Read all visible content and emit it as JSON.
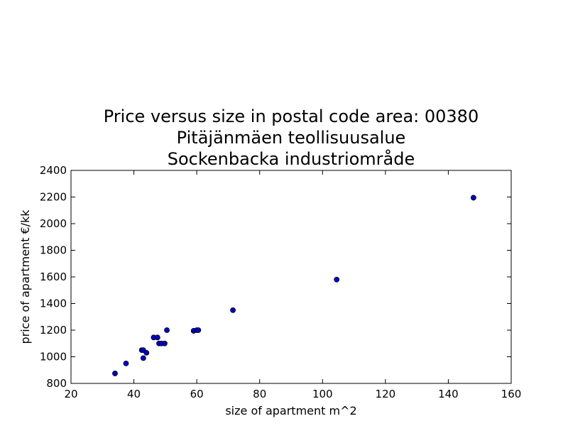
{
  "chart_data": {
    "type": "scatter",
    "title_lines": [
      "Price versus size in postal code area: 00380",
      "Pitäjänmäen teollisuusalue",
      "Sockenbacka industriområde"
    ],
    "xlabel": "size of apartment m^2",
    "ylabel": "price of apartment €/kk",
    "xlim": [
      20,
      160
    ],
    "ylim": [
      800,
      2400
    ],
    "xticks": [
      20,
      40,
      60,
      80,
      100,
      120,
      140,
      160
    ],
    "yticks": [
      800,
      1000,
      1200,
      1400,
      1600,
      1800,
      2000,
      2200,
      2400
    ],
    "grid": false,
    "series": [
      {
        "color": "#0000cc",
        "points": [
          {
            "x": 34,
            "y": 875
          },
          {
            "x": 37.5,
            "y": 950
          },
          {
            "x": 42.5,
            "y": 1050
          },
          {
            "x": 43,
            "y": 1050
          },
          {
            "x": 43,
            "y": 990
          },
          {
            "x": 44,
            "y": 1030
          },
          {
            "x": 46.3,
            "y": 1145
          },
          {
            "x": 47.5,
            "y": 1145
          },
          {
            "x": 48,
            "y": 1100
          },
          {
            "x": 48.8,
            "y": 1100
          },
          {
            "x": 49.8,
            "y": 1100
          },
          {
            "x": 50.5,
            "y": 1200
          },
          {
            "x": 59,
            "y": 1195
          },
          {
            "x": 60,
            "y": 1200
          },
          {
            "x": 60.5,
            "y": 1200
          },
          {
            "x": 71.5,
            "y": 1350
          },
          {
            "x": 104.5,
            "y": 1580
          },
          {
            "x": 148,
            "y": 2195
          }
        ]
      }
    ]
  }
}
